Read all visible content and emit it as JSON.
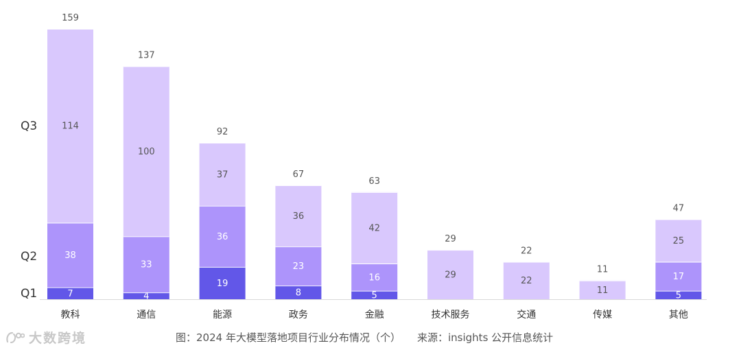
{
  "chart_data": {
    "type": "bar",
    "stacked": true,
    "categories": [
      "教科",
      "通信",
      "能源",
      "政务",
      "金融",
      "技术服务",
      "交通",
      "传媒",
      "其他"
    ],
    "series": [
      {
        "name": "Q1",
        "values": [
          7,
          4,
          19,
          8,
          5,
          0,
          0,
          0,
          5
        ],
        "color": "#6257e8"
      },
      {
        "name": "Q2",
        "values": [
          38,
          33,
          36,
          23,
          16,
          0,
          0,
          0,
          17
        ],
        "color": "#ad94fb"
      },
      {
        "name": "Q3",
        "values": [
          114,
          100,
          37,
          36,
          42,
          29,
          22,
          11,
          25
        ],
        "color": "#d9c8fd"
      }
    ],
    "totals": [
      159,
      137,
      92,
      67,
      63,
      29,
      22,
      11,
      47
    ],
    "ylim": [
      0,
      159
    ],
    "grid": false,
    "legend_placement": "left"
  },
  "caption": {
    "figure": "图：2024 年大模型落地项目行业分布情况（个）",
    "source": "来源：insights 公开信息统计"
  },
  "watermark": {
    "text": "大数跨境"
  }
}
